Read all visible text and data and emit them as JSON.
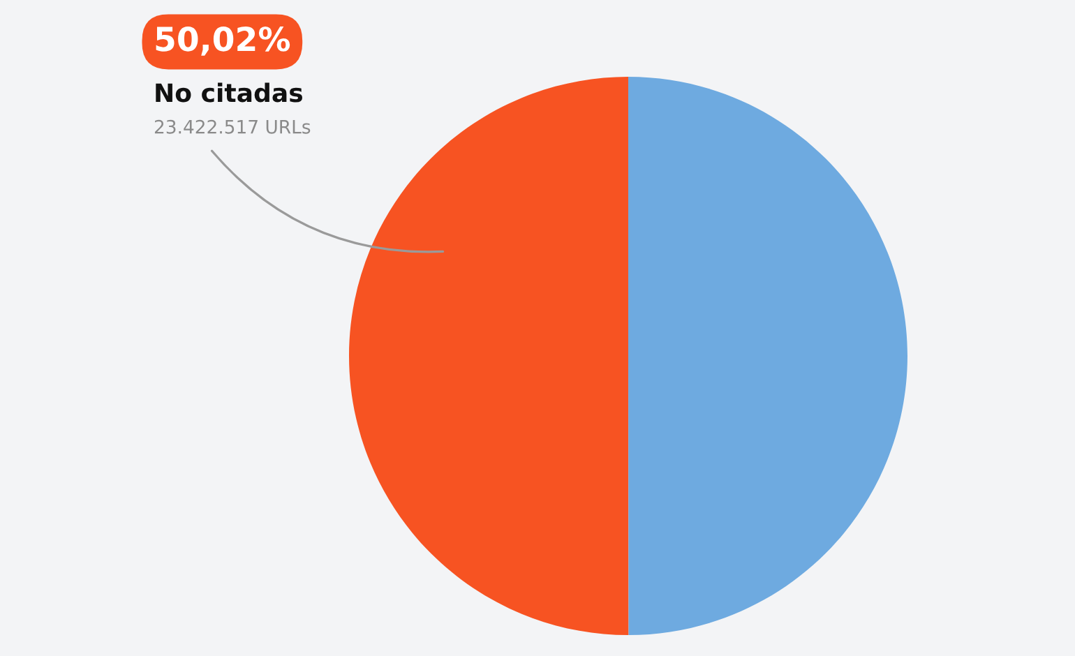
{
  "chart_data": {
    "type": "pie",
    "categories": [
      "No citadas",
      null
    ],
    "values": [
      50.02,
      49.98
    ],
    "colors": [
      "#f75322",
      "#6eaae0"
    ],
    "value_labels": [
      "50,02%",
      null
    ],
    "annotations": [
      "23.422.517 URLs"
    ],
    "legend": false
  }
}
